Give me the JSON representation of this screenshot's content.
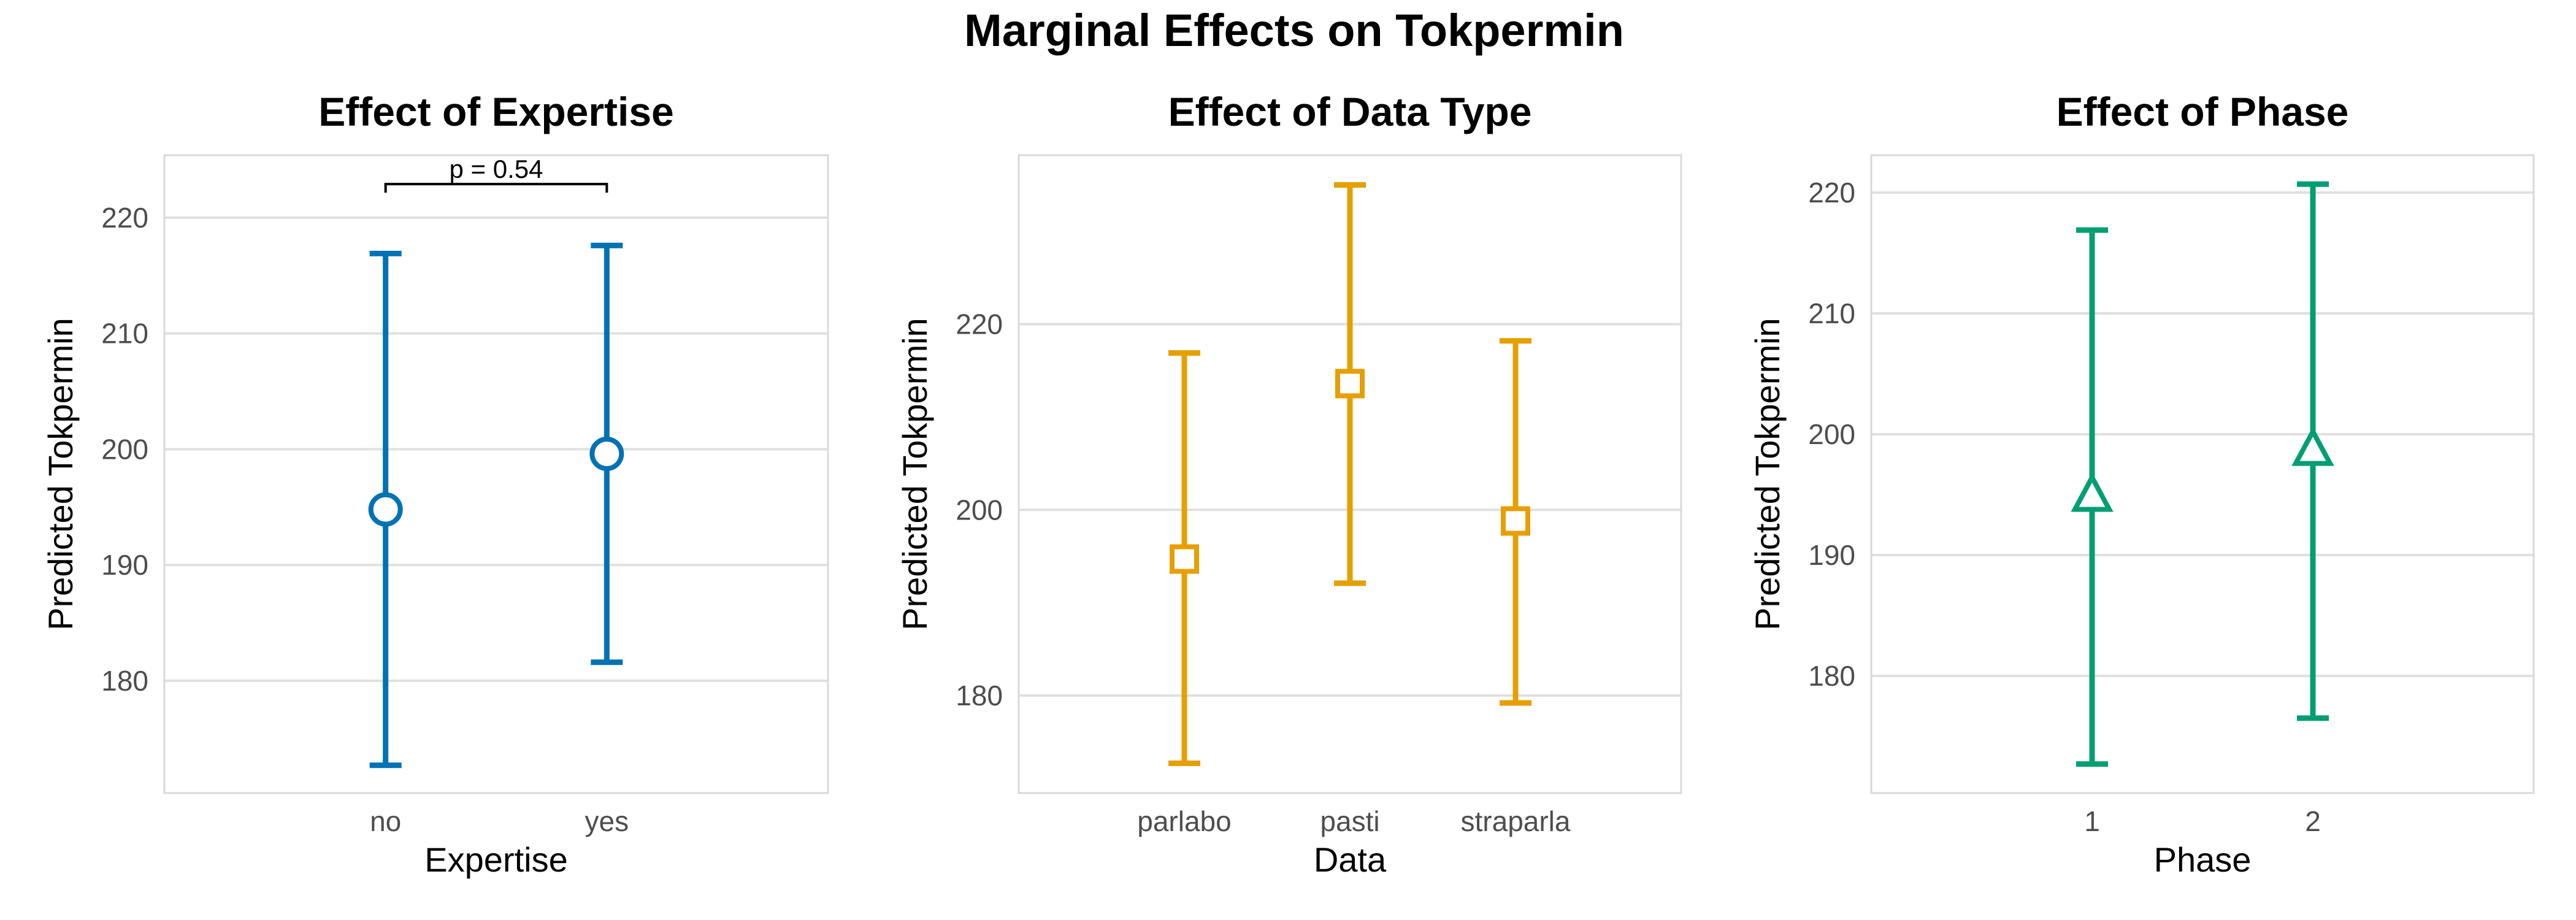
{
  "title": "Marginal Effects on Tokpermin",
  "chart_data": [
    {
      "type": "errorbar",
      "title": "Effect of Expertise",
      "xlabel": "Expertise",
      "ylabel": "Predicted Tokpermin",
      "categories": [
        "no",
        "yes"
      ],
      "values": [
        194.8,
        199.6
      ],
      "lower": [
        172.7,
        181.6
      ],
      "upper": [
        216.9,
        217.6
      ],
      "ylim": [
        170.3,
        225.4
      ],
      "yticks": [
        180,
        190,
        200,
        210,
        220
      ],
      "marker": "circle",
      "color": "#0072B2",
      "annotation": {
        "text": "p = 0.54",
        "from": 0,
        "to": 1,
        "y": 222.9
      }
    },
    {
      "type": "errorbar",
      "title": "Effect of Data Type",
      "xlabel": "Data",
      "ylabel": "Predicted Tokpermin",
      "categories": [
        "parlabo",
        "pasti",
        "straparla"
      ],
      "values": [
        194.7,
        213.6,
        198.8
      ],
      "lower": [
        172.7,
        192.1,
        179.2
      ],
      "upper": [
        216.9,
        235.0,
        218.2
      ],
      "ylim": [
        169.5,
        238.2
      ],
      "yticks": [
        180,
        200,
        220
      ],
      "marker": "square",
      "color": "#E69F00"
    },
    {
      "type": "errorbar",
      "title": "Effect of Phase",
      "xlabel": "Phase",
      "ylabel": "Predicted Tokpermin",
      "categories": [
        "1",
        "2"
      ],
      "values": [
        194.9,
        198.7
      ],
      "lower": [
        172.7,
        176.5
      ],
      "upper": [
        216.9,
        220.7
      ],
      "ylim": [
        170.3,
        223.1
      ],
      "yticks": [
        180,
        190,
        200,
        210,
        220
      ],
      "marker": "triangle",
      "color": "#009E73"
    }
  ]
}
